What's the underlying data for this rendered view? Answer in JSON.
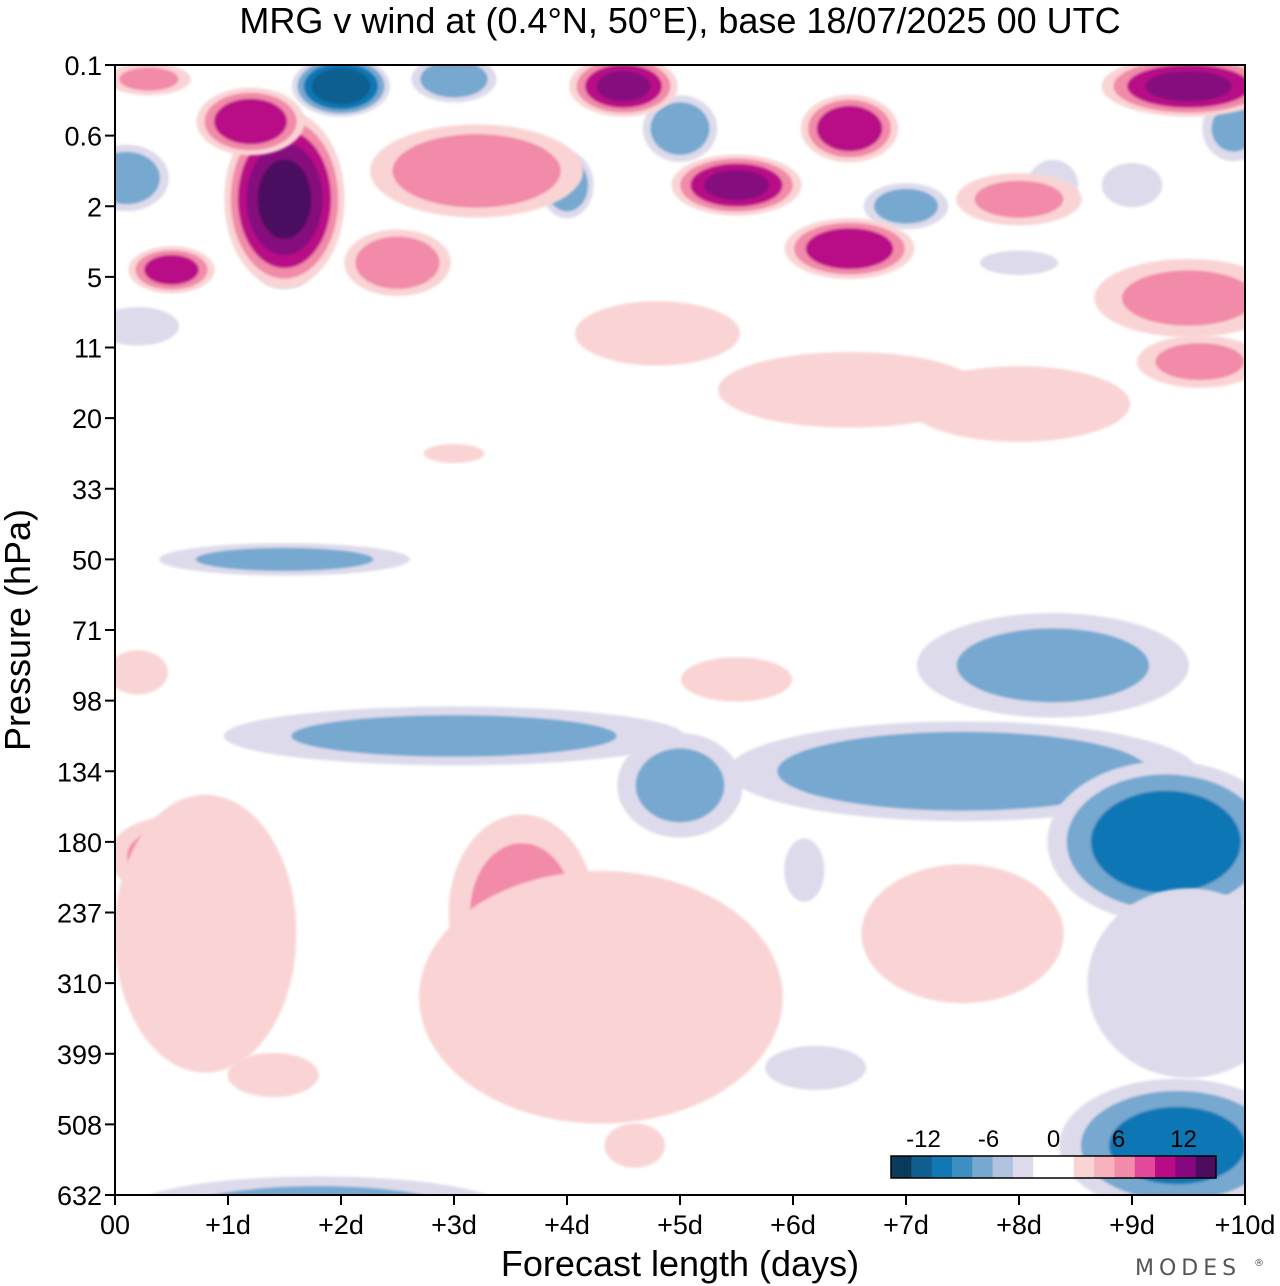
{
  "chart_data": {
    "type": "heatmap",
    "title": "MRG v wind at (0.4°N, 50°E),  base 18/07/2025  00 UTC",
    "xlabel": "Forecast length (days)",
    "ylabel": "Pressure (hPa)",
    "x_ticks": [
      "00",
      "+1d",
      "+2d",
      "+3d",
      "+4d",
      "+5d",
      "+6d",
      "+7d",
      "+8d",
      "+9d",
      "+10d"
    ],
    "y_ticks": [
      "0.1",
      "0.6",
      "2",
      "5",
      "11",
      "20",
      "33",
      "50",
      "71",
      "98",
      "134",
      "180",
      "237",
      "310",
      "399",
      "508",
      "632"
    ],
    "xlim": [
      0,
      10
    ],
    "colorbar": {
      "labels": [
        {
          "text": "-12",
          "value": -12
        },
        {
          "text": "-6",
          "value": -6
        },
        {
          "text": "0",
          "value": 0
        },
        {
          "text": "6",
          "value": 6
        },
        {
          "text": "12",
          "value": 12
        }
      ],
      "range": [
        -15,
        15
      ],
      "colors": [
        "#0b3b5a",
        "#0e5e90",
        "#1177b5",
        "#3d8fc2",
        "#76a8d0",
        "#b1c2de",
        "#dddbeb",
        "#ffffff",
        "#ffffff",
        "#fad4d4",
        "#f7b2be",
        "#f28aa9",
        "#e3489a",
        "#b80c86",
        "#86077e",
        "#4c0d5e"
      ]
    },
    "features": [
      {
        "sign": "negative",
        "x": 2.0,
        "y_level": 0.3,
        "value": -14,
        "rx": 0.45,
        "ry": 0.45
      },
      {
        "sign": "negative",
        "x": 3.0,
        "y_level": 0.2,
        "value": -8,
        "rx": 0.4,
        "ry": 0.35
      },
      {
        "sign": "negative",
        "x": 0.1,
        "y_level": 1.6,
        "value": -8,
        "rx": 0.4,
        "ry": 0.5
      },
      {
        "sign": "negative",
        "x": 5.0,
        "y_level": 0.9,
        "value": -8,
        "rx": 0.35,
        "ry": 0.5
      },
      {
        "sign": "negative",
        "x": 4.0,
        "y_level": 1.7,
        "value": -8,
        "rx": 0.25,
        "ry": 0.5
      },
      {
        "sign": "negative",
        "x": 7.0,
        "y_level": 2.0,
        "value": -7,
        "rx": 0.4,
        "ry": 0.35
      },
      {
        "sign": "negative",
        "x": 9.9,
        "y_level": 0.9,
        "value": -6,
        "rx": 0.3,
        "ry": 0.5
      },
      {
        "sign": "negative",
        "x": 8.3,
        "y_level": 1.7,
        "value": -4,
        "rx": 0.25,
        "ry": 0.4
      },
      {
        "sign": "negative",
        "x": 9.0,
        "y_level": 1.7,
        "value": -4,
        "rx": 0.3,
        "ry": 0.35
      },
      {
        "sign": "negative",
        "x": 0.2,
        "y_level": 3.7,
        "value": -5,
        "rx": 0.4,
        "ry": 0.3
      },
      {
        "sign": "negative",
        "x": 1.5,
        "y_level": 3.0,
        "value": -3,
        "rx": 0.25,
        "ry": 0.2
      },
      {
        "sign": "negative",
        "x": 8.0,
        "y_level": 2.8,
        "value": -3,
        "rx": 0.4,
        "ry": 0.2
      },
      {
        "sign": "negative",
        "x": 1.5,
        "y_level": 7.0,
        "value": -6,
        "rx": 1.2,
        "ry": 0.25
      },
      {
        "sign": "negative",
        "x": 3.0,
        "y_level": 9.5,
        "value": -6,
        "rx": 2.2,
        "ry": 0.45
      },
      {
        "sign": "negative",
        "x": 5.0,
        "y_level": 10.2,
        "value": -6,
        "rx": 0.6,
        "ry": 0.8
      },
      {
        "sign": "negative",
        "x": 7.5,
        "y_level": 10.0,
        "value": -8,
        "rx": 2.2,
        "ry": 0.75
      },
      {
        "sign": "negative",
        "x": 8.3,
        "y_level": 8.5,
        "value": -6,
        "rx": 1.3,
        "ry": 0.8
      },
      {
        "sign": "negative",
        "x": 9.3,
        "y_level": 11.0,
        "value": -10,
        "rx": 1.1,
        "ry": 1.2
      },
      {
        "sign": "negative",
        "x": 9.5,
        "y_level": 13.0,
        "value": -4,
        "rx": 1.0,
        "ry": 1.5
      },
      {
        "sign": "negative",
        "x": 9.4,
        "y_level": 15.3,
        "value": -9,
        "rx": 1.1,
        "ry": 1.0
      },
      {
        "sign": "negative",
        "x": 1.8,
        "y_level": 16.2,
        "value": -6,
        "rx": 1.8,
        "ry": 0.5
      },
      {
        "sign": "negative",
        "x": 6.2,
        "y_level": 14.2,
        "value": -4,
        "rx": 0.5,
        "ry": 0.35
      },
      {
        "sign": "negative",
        "x": 6.1,
        "y_level": 11.4,
        "value": -4,
        "rx": 0.2,
        "ry": 0.5
      },
      {
        "sign": "positive",
        "x": 1.5,
        "y_level": 1.9,
        "value": 15,
        "rx": 0.55,
        "ry": 1.3
      },
      {
        "sign": "positive",
        "x": 1.2,
        "y_level": 0.8,
        "value": 11,
        "rx": 0.5,
        "ry": 0.5
      },
      {
        "sign": "positive",
        "x": 4.5,
        "y_level": 0.3,
        "value": 12,
        "rx": 0.5,
        "ry": 0.45
      },
      {
        "sign": "positive",
        "x": 9.5,
        "y_level": 0.3,
        "value": 12,
        "rx": 0.8,
        "ry": 0.45
      },
      {
        "sign": "positive",
        "x": 5.5,
        "y_level": 1.7,
        "value": 12,
        "rx": 0.6,
        "ry": 0.45
      },
      {
        "sign": "positive",
        "x": 6.5,
        "y_level": 0.9,
        "value": 11,
        "rx": 0.45,
        "ry": 0.5
      },
      {
        "sign": "positive",
        "x": 6.5,
        "y_level": 2.6,
        "value": 11,
        "rx": 0.6,
        "ry": 0.45
      },
      {
        "sign": "positive",
        "x": 0.5,
        "y_level": 2.9,
        "value": 10,
        "rx": 0.4,
        "ry": 0.35
      },
      {
        "sign": "positive",
        "x": 3.2,
        "y_level": 1.5,
        "value": 8,
        "rx": 1.0,
        "ry": 0.7
      },
      {
        "sign": "positive",
        "x": 2.5,
        "y_level": 2.8,
        "value": 8,
        "rx": 0.5,
        "ry": 0.5
      },
      {
        "sign": "positive",
        "x": 0.3,
        "y_level": 0.2,
        "value": 6,
        "rx": 0.4,
        "ry": 0.25
      },
      {
        "sign": "positive",
        "x": 8.0,
        "y_level": 1.9,
        "value": 6,
        "rx": 0.6,
        "ry": 0.4
      },
      {
        "sign": "positive",
        "x": 9.5,
        "y_level": 3.3,
        "value": 6,
        "rx": 0.9,
        "ry": 0.6
      },
      {
        "sign": "positive",
        "x": 9.6,
        "y_level": 4.2,
        "value": 6,
        "rx": 0.6,
        "ry": 0.4
      },
      {
        "sign": "positive",
        "x": 4.8,
        "y_level": 3.8,
        "value": 5,
        "rx": 0.8,
        "ry": 0.5
      },
      {
        "sign": "positive",
        "x": 6.5,
        "y_level": 4.6,
        "value": 4,
        "rx": 1.3,
        "ry": 0.6
      },
      {
        "sign": "positive",
        "x": 8.0,
        "y_level": 4.8,
        "value": 4,
        "rx": 1.1,
        "ry": 0.6
      },
      {
        "sign": "positive",
        "x": 5.5,
        "y_level": 8.7,
        "value": 4,
        "rx": 0.55,
        "ry": 0.35
      },
      {
        "sign": "positive",
        "x": 4.0,
        "y_level": 12.8,
        "value": 10,
        "rx": 1.1,
        "ry": 1.2
      },
      {
        "sign": "positive",
        "x": 3.6,
        "y_level": 12.0,
        "value": 6,
        "rx": 0.7,
        "ry": 1.5
      },
      {
        "sign": "positive",
        "x": 4.3,
        "y_level": 13.2,
        "value": 4,
        "rx": 1.8,
        "ry": 2.0
      },
      {
        "sign": "positive",
        "x": 0.5,
        "y_level": 11.2,
        "value": 6,
        "rx": 0.6,
        "ry": 0.6
      },
      {
        "sign": "positive",
        "x": 0.8,
        "y_level": 12.3,
        "value": 4,
        "rx": 0.9,
        "ry": 2.2
      },
      {
        "sign": "positive",
        "x": 7.4,
        "y_level": 12.3,
        "value": 6,
        "rx": 0.5,
        "ry": 0.6
      },
      {
        "sign": "positive",
        "x": 7.5,
        "y_level": 12.3,
        "value": 4,
        "rx": 1.0,
        "ry": 1.1
      },
      {
        "sign": "positive",
        "x": 1.4,
        "y_level": 14.3,
        "value": 4,
        "rx": 0.45,
        "ry": 0.35
      },
      {
        "sign": "positive",
        "x": 4.6,
        "y_level": 15.3,
        "value": 4,
        "rx": 0.3,
        "ry": 0.35
      },
      {
        "sign": "positive",
        "x": 0.2,
        "y_level": 8.6,
        "value": 4,
        "rx": 0.3,
        "ry": 0.35
      },
      {
        "sign": "positive",
        "x": 3.0,
        "y_level": 5.5,
        "value": 4,
        "rx": 0.3,
        "ry": 0.15
      }
    ]
  },
  "logo": "MODES",
  "logo_mark": "®"
}
